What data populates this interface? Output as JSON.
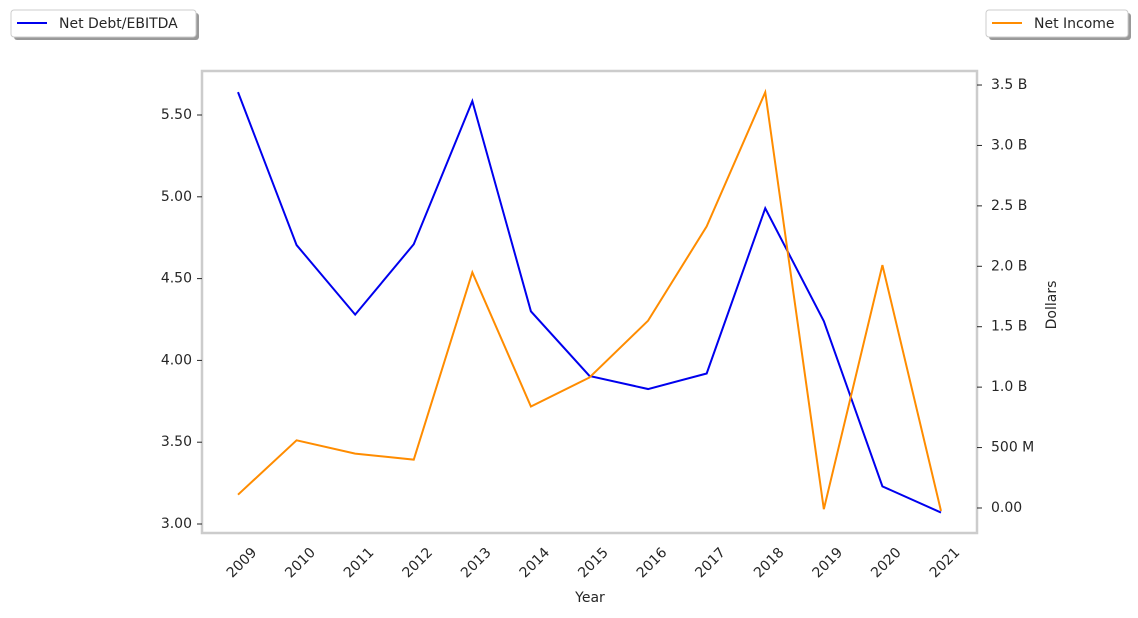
{
  "chart_data": {
    "type": "line",
    "x_label": "Year",
    "y2_label": "Dollars",
    "categories": [
      "2009",
      "2010",
      "2011",
      "2012",
      "2013",
      "2014",
      "2015",
      "2016",
      "2017",
      "2018",
      "2019",
      "2020",
      "2021"
    ],
    "series": [
      {
        "name": "Net Debt/EBITDA",
        "color": "#0000ee",
        "values": [
          5.64,
          4.705,
          4.28,
          4.71,
          5.585,
          4.3,
          3.905,
          3.825,
          3.92,
          4.93,
          4.24,
          3.23,
          3.07
        ]
      },
      {
        "name": "Net Income",
        "color": "#ff8c00",
        "axis": "y2",
        "values": [
          110000000,
          560000000,
          450000000,
          400000000,
          1950000000,
          840000000,
          1080000000,
          1550000000,
          2330000000,
          3440000000,
          -10000000,
          2010000000,
          -25000000
        ]
      }
    ],
    "ylim": [
      2.945,
      5.769
    ],
    "yticks": [
      {
        "value": 3,
        "label": "3.00"
      },
      {
        "value": 3.5,
        "label": "3.50"
      },
      {
        "value": 4,
        "label": "4.00"
      },
      {
        "value": 4.5,
        "label": "4.50"
      },
      {
        "value": 5,
        "label": "5.00"
      },
      {
        "value": 5.5,
        "label": "5.50"
      }
    ],
    "y2lim": [
      -207000000,
      3616000000
    ],
    "y2ticks": [
      {
        "value": 0,
        "label": "0.00"
      },
      {
        "value": 500000000,
        "label": "500 M"
      },
      {
        "value": 1000000000,
        "label": "1.0 B"
      },
      {
        "value": 1500000000,
        "label": "1.5 B"
      },
      {
        "value": 2000000000,
        "label": "2.0 B"
      },
      {
        "value": 2500000000,
        "label": "2.5 B"
      },
      {
        "value": 3000000000,
        "label": "3.0 B"
      },
      {
        "value": 3500000000,
        "label": "3.5 B"
      }
    ],
    "grid": false
  }
}
